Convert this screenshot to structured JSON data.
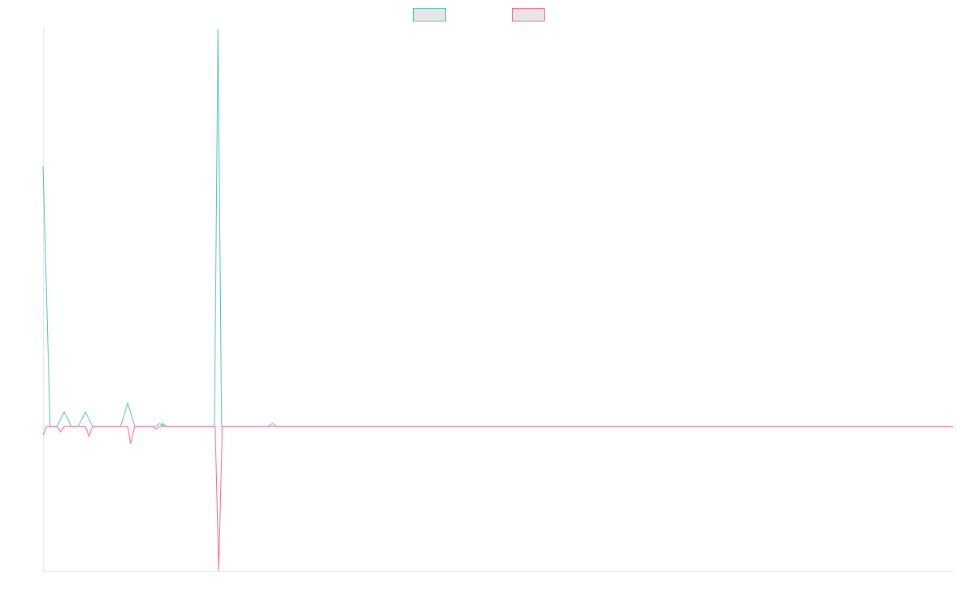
{
  "chart_data": {
    "type": "line",
    "title": "",
    "xlabel": "",
    "ylabel": "",
    "legend_position": "top-center",
    "grid": false,
    "x_count": 130,
    "ylim": [
      -100,
      275
    ],
    "series": [
      {
        "color": "#4bc0c0",
        "fill": "#e6e6e6",
        "points": [
          {
            "x": 0,
            "y": 180
          },
          {
            "x": 1,
            "y": 0
          },
          {
            "x": 2,
            "y": 0
          },
          {
            "x": 3,
            "y": 10
          },
          {
            "x": 4,
            "y": 0
          },
          {
            "x": 5,
            "y": 0
          },
          {
            "x": 6,
            "y": 10
          },
          {
            "x": 7,
            "y": 0
          },
          {
            "x": 11,
            "y": 0
          },
          {
            "x": 12,
            "y": 16
          },
          {
            "x": 13,
            "y": 0
          },
          {
            "x": 16,
            "y": 0
          },
          {
            "x": 16.5,
            "y": 2
          },
          {
            "x": 17,
            "y": 0
          },
          {
            "x": 16.9,
            "y": 2
          },
          {
            "x": 17.5,
            "y": 0
          },
          {
            "x": 24.3,
            "y": 0
          },
          {
            "x": 24.8,
            "y": 275
          },
          {
            "x": 25.3,
            "y": 0
          },
          {
            "x": 32,
            "y": 0
          },
          {
            "x": 32.5,
            "y": 2
          },
          {
            "x": 33,
            "y": 0
          },
          {
            "x": 129,
            "y": 0
          }
        ]
      },
      {
        "color": "#ff6384",
        "fill": "#e6e6e6",
        "points": [
          {
            "x": 0,
            "y": -6
          },
          {
            "x": 0.5,
            "y": 0
          },
          {
            "x": 2,
            "y": 0
          },
          {
            "x": 2.5,
            "y": -4
          },
          {
            "x": 3,
            "y": 0
          },
          {
            "x": 6,
            "y": 0
          },
          {
            "x": 6.5,
            "y": -7
          },
          {
            "x": 7,
            "y": 0
          },
          {
            "x": 12,
            "y": 0
          },
          {
            "x": 12.4,
            "y": -12
          },
          {
            "x": 13,
            "y": 0
          },
          {
            "x": 15.5,
            "y": 0
          },
          {
            "x": 16,
            "y": -2
          },
          {
            "x": 16.5,
            "y": 0
          },
          {
            "x": 24.4,
            "y": 0
          },
          {
            "x": 24.9,
            "y": -100
          },
          {
            "x": 25.4,
            "y": 0
          },
          {
            "x": 129,
            "y": 0
          }
        ]
      }
    ]
  }
}
